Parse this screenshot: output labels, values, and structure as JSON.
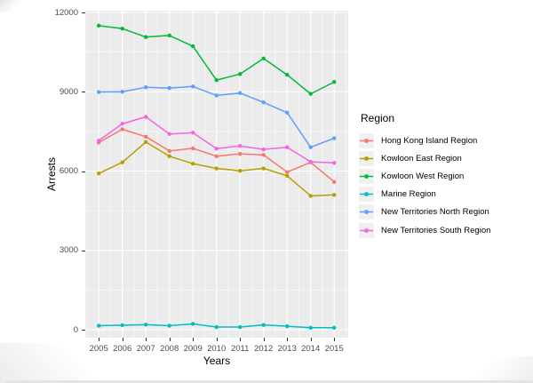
{
  "chart_data": {
    "type": "line",
    "title": "",
    "xlabel": "Years",
    "ylabel": "Arrests",
    "x": [
      2005,
      2006,
      2007,
      2008,
      2009,
      2010,
      2011,
      2012,
      2013,
      2014,
      2015
    ],
    "ylim": [
      0,
      12000
    ],
    "yticks": [
      0,
      3000,
      6000,
      9000,
      12000
    ],
    "yticks_minor": [
      1500,
      4500,
      7500,
      10500
    ],
    "grid": "on",
    "panel_bg": "#EBEBEB",
    "grid_color": "#FFFFFF",
    "tick_label_color": "#4D4D4D",
    "legend": {
      "title": "Region",
      "position": "right"
    },
    "series": [
      {
        "name": "Hong Kong Island Region",
        "color": "#F8766D",
        "values": [
          7080,
          7580,
          7300,
          6760,
          6860,
          6560,
          6650,
          6610,
          5960,
          6330,
          5590
        ]
      },
      {
        "name": "Kowloon East Region",
        "color": "#B79F00",
        "values": [
          5910,
          6330,
          7100,
          6560,
          6280,
          6100,
          6010,
          6100,
          5820,
          5060,
          5100
        ]
      },
      {
        "name": "Kowloon West Region",
        "color": "#00BA38",
        "values": [
          11500,
          11390,
          11070,
          11130,
          10720,
          9440,
          9670,
          10260,
          9640,
          8920,
          9370
        ]
      },
      {
        "name": "Marine Region",
        "color": "#00BFC4",
        "values": [
          150,
          170,
          190,
          150,
          220,
          100,
          100,
          180,
          130,
          75,
          75
        ]
      },
      {
        "name": "New Territories North Region",
        "color": "#619CFF",
        "values": [
          8990,
          9000,
          9170,
          9140,
          9200,
          8860,
          8950,
          8600,
          8210,
          6900,
          7240
        ]
      },
      {
        "name": "New Territories South Region",
        "color": "#F564E3",
        "values": [
          7150,
          7790,
          8050,
          7400,
          7450,
          6850,
          6950,
          6820,
          6900,
          6350,
          6310
        ]
      }
    ]
  }
}
